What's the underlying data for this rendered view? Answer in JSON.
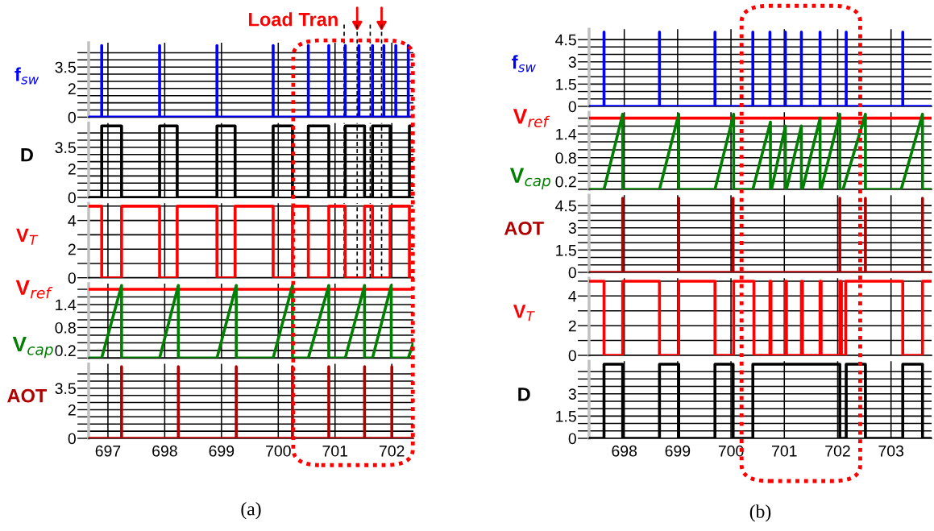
{
  "chart_data": [
    {
      "type": "line",
      "series": [
        {
          "name": "f$_{sw}$",
          "color": "#0000ff",
          "x": [
            696.66,
            696.89,
            696.89,
            696.89,
            697.91,
            697.91,
            697.91,
            698.92,
            698.92,
            698.92,
            699.91,
            699.91,
            699.91,
            700.53,
            700.53,
            700.53,
            700.89,
            700.89,
            700.89,
            701.18,
            701.18,
            701.18,
            701.42,
            701.42,
            701.42,
            701.66,
            701.66,
            701.66,
            701.86,
            701.86,
            701.86,
            702.07,
            702.07,
            702.07,
            702.29,
            702.29,
            702.29,
            702.38
          ],
          "values": [
            0,
            0,
            5,
            0,
            0,
            5,
            0,
            0,
            5,
            0,
            0,
            5,
            0,
            0,
            5,
            0,
            0,
            5,
            0,
            0,
            5,
            0,
            0,
            5,
            0,
            0,
            5,
            0,
            0,
            5,
            0,
            0,
            5,
            0,
            0,
            5,
            0,
            0
          ]
        }
      ],
      "xlim": [
        696.66,
        702.38
      ],
      "xticks": [
        697,
        698,
        699,
        700,
        701,
        702
      ],
      "ylim": [
        0,
        5.2
      ],
      "yticks": [
        0,
        {
          "value": 0.5,
          "label": null
        },
        {
          "value": 1,
          "label": null
        },
        {
          "value": 1.5,
          "label": null
        },
        2,
        {
          "value": 2.5,
          "label": null
        },
        {
          "value": 3,
          "label": null
        },
        3.5,
        {
          "value": 4,
          "label": null
        },
        {
          "value": 4.5,
          "label": null
        }
      ],
      "grid": true,
      "tick_labels": "y",
      "ref_lines": [
        {
          "axis": "x",
          "value": 701.16,
          "color": "#000000",
          "line_style": "dashed"
        },
        {
          "axis": "x",
          "value": 701.39,
          "color": "#000000",
          "line_style": "dashed"
        },
        {
          "axis": "x",
          "value": 701.62,
          "color": "#000000",
          "line_style": "dashed"
        },
        {
          "axis": "x",
          "value": 701.82,
          "color": "#000000",
          "line_style": "dashed"
        }
      ],
      "annotations": [
        "Load Tran"
      ]
    },
    {
      "type": "step",
      "series": [
        {
          "name": "D",
          "color": "#000000",
          "x": [
            696.66,
            696.89,
            697.24,
            697.91,
            698.22,
            698.92,
            699.24,
            699.91,
            700.25,
            700.53,
            700.89,
            701.18,
            701.52,
            701.66,
            701.97,
            702.31,
            702.38
          ],
          "values": [
            0,
            5,
            0,
            5,
            0,
            5,
            0,
            5,
            0,
            5,
            0,
            5,
            0,
            5,
            0,
            5,
            5
          ]
        }
      ],
      "xlim": [
        696.66,
        702.38
      ],
      "xticks": [
        697,
        698,
        699,
        700,
        701,
        702
      ],
      "ylim": [
        0,
        5.2
      ],
      "yticks": [
        0,
        {
          "value": 0.5,
          "label": null
        },
        {
          "value": 1,
          "label": null
        },
        {
          "value": 1.5,
          "label": null
        },
        2,
        {
          "value": 2.5,
          "label": null
        },
        {
          "value": 3,
          "label": null
        },
        3.5,
        {
          "value": 4,
          "label": null
        },
        {
          "value": 4.5,
          "label": null
        }
      ],
      "grid": true,
      "tick_labels": "y",
      "ref_lines": [
        {
          "axis": "x",
          "value": 701.16,
          "color": "#000000",
          "line_style": "dashed"
        },
        {
          "axis": "x",
          "value": 701.39,
          "color": "#000000",
          "line_style": "dashed"
        },
        {
          "axis": "x",
          "value": 701.62,
          "color": "#000000",
          "line_style": "dashed"
        },
        {
          "axis": "x",
          "value": 701.82,
          "color": "#000000",
          "line_style": "dashed"
        }
      ]
    },
    {
      "type": "step",
      "series": [
        {
          "name": "V$_{T}$",
          "color": "#ff0000",
          "x": [
            696.66,
            696.89,
            697.24,
            697.91,
            698.22,
            698.92,
            699.24,
            699.91,
            700.25,
            700.53,
            700.89,
            701.18,
            701.52,
            701.66,
            701.97,
            702.31,
            702.38
          ],
          "values": [
            5,
            0,
            5,
            0,
            5,
            0,
            5,
            0,
            5,
            0,
            5,
            0,
            5,
            0,
            5,
            0,
            0
          ]
        }
      ],
      "xlim": [
        696.66,
        702.38
      ],
      "xticks": [
        697,
        698,
        699,
        700,
        701,
        702
      ],
      "ylim": [
        0,
        5.2
      ],
      "yticks": [
        0,
        {
          "value": 1,
          "label": null
        },
        2,
        {
          "value": 3,
          "label": null
        },
        4,
        {
          "value": 5,
          "label": null
        }
      ],
      "grid": true,
      "tick_labels": "y",
      "ref_lines": [
        {
          "axis": "x",
          "value": 701.16,
          "color": "#000000",
          "line_style": "dashed"
        },
        {
          "axis": "x",
          "value": 701.39,
          "color": "#000000",
          "line_style": "dashed"
        },
        {
          "axis": "x",
          "value": 701.62,
          "color": "#000000",
          "line_style": "dashed"
        },
        {
          "axis": "x",
          "value": 701.82,
          "color": "#000000",
          "line_style": "dashed"
        }
      ]
    },
    {
      "type": "line",
      "series": [
        {
          "name": "V$_{ref}$",
          "color": "#ff0000",
          "x": [
            696.66,
            702.38
          ],
          "values": [
            1.8,
            1.8
          ]
        },
        {
          "name": "V$_{cap}$",
          "color": "#008000",
          "x": [
            696.66,
            696.89,
            697.24,
            697.24,
            697.91,
            698.24,
            698.24,
            698.92,
            699.26,
            699.26,
            699.91,
            700.25,
            700.25,
            700.53,
            700.89,
            700.89,
            701.18,
            701.52,
            701.52,
            701.66,
            701.99,
            701.99,
            702.29,
            702.38
          ],
          "values": [
            0,
            0,
            1.9,
            0,
            0,
            1.9,
            0,
            0,
            1.9,
            0,
            0,
            1.9,
            0,
            0,
            1.9,
            0,
            0,
            1.9,
            0,
            0,
            1.9,
            0,
            0,
            0.4
          ]
        }
      ],
      "xlim": [
        696.66,
        702.38
      ],
      "xticks": [
        697,
        698,
        699,
        700,
        701,
        702
      ],
      "ylim": [
        0,
        1.95
      ],
      "yticks": [
        {
          "value": 0,
          "label": null
        },
        0.2,
        {
          "value": 0.4,
          "label": null
        },
        {
          "value": 0.6,
          "label": null
        },
        0.8,
        {
          "value": 1,
          "label": null
        },
        {
          "value": 1.2,
          "label": null
        },
        1.4,
        {
          "value": 1.6,
          "label": null
        },
        {
          "value": 1.8,
          "label": null
        }
      ],
      "grid": true,
      "tick_labels": "y"
    },
    {
      "type": "line",
      "series": [
        {
          "name": "AOT",
          "color": "#b00000",
          "x": [
            696.66,
            697.24,
            697.24,
            697.24,
            698.24,
            698.24,
            698.24,
            699.26,
            699.26,
            699.26,
            700.25,
            700.25,
            700.25,
            700.89,
            700.89,
            700.89,
            701.52,
            701.52,
            701.52,
            702.0,
            702.0,
            702.0,
            702.38
          ],
          "values": [
            0,
            0,
            5,
            0,
            0,
            5,
            0,
            0,
            5,
            0,
            0,
            5,
            0,
            0,
            5,
            0,
            0,
            5,
            0,
            0,
            5,
            0,
            0
          ]
        }
      ],
      "xlim": [
        696.66,
        702.38
      ],
      "xticks": [
        697,
        698,
        699,
        700,
        701,
        702
      ],
      "ylim": [
        0,
        5.2
      ],
      "yticks": [
        0,
        {
          "value": 0.5,
          "label": null
        },
        {
          "value": 1,
          "label": null
        },
        {
          "value": 1.5,
          "label": null
        },
        2,
        {
          "value": 2.5,
          "label": null
        },
        {
          "value": 3,
          "label": null
        },
        3.5,
        {
          "value": 4,
          "label": null
        },
        {
          "value": 4.5,
          "label": null
        }
      ],
      "grid": true,
      "annotations": [
        "(a)"
      ]
    },
    {
      "type": "line",
      "series": [
        {
          "name": "f$_{sw}$",
          "color": "#0000ff",
          "x": [
            697.34,
            697.62,
            697.62,
            697.62,
            698.66,
            698.66,
            698.66,
            699.7,
            699.7,
            699.7,
            700.41,
            700.41,
            700.41,
            700.73,
            700.73,
            700.73,
            701.02,
            701.02,
            701.02,
            701.32,
            701.32,
            701.32,
            701.67,
            701.67,
            701.67,
            702.16,
            702.16,
            702.16,
            703.22,
            703.22,
            703.22,
            703.76
          ],
          "values": [
            0,
            0,
            5,
            0,
            0,
            5,
            0,
            0,
            5,
            0,
            0,
            5,
            0,
            0,
            5,
            0,
            0,
            5,
            0,
            0,
            5,
            0,
            0,
            5,
            0,
            0,
            5,
            0,
            0,
            5,
            0,
            0
          ]
        }
      ],
      "xlim": [
        697.34,
        703.76
      ],
      "xticks": [
        698,
        699,
        700,
        701,
        702,
        703
      ],
      "ylim": [
        0,
        5.2
      ],
      "yticks": [
        0,
        {
          "value": 0.5,
          "label": null
        },
        {
          "value": 1,
          "label": null
        },
        1.5,
        {
          "value": 2,
          "label": null
        },
        {
          "value": 2.5,
          "label": null
        },
        3,
        {
          "value": 3.5,
          "label": null
        },
        {
          "value": 4,
          "label": null
        },
        4.5
      ],
      "grid": true,
      "tick_labels": "y"
    },
    {
      "type": "line",
      "series": [
        {
          "name": "V$_{ref}$",
          "color": "#ff0000",
          "x": [
            697.34,
            703.76
          ],
          "values": [
            1.8,
            1.8
          ]
        },
        {
          "name": "V$_{cap}$",
          "color": "#008000",
          "x": [
            697.34,
            697.62,
            697.97,
            697.97,
            698.66,
            699.02,
            699.02,
            699.7,
            700.05,
            700.05,
            700.41,
            700.74,
            700.74,
            700.76,
            701.02,
            701.02,
            701.04,
            701.32,
            701.32,
            701.34,
            701.67,
            701.67,
            701.69,
            702.04,
            702.04,
            702.1,
            702.52,
            702.52,
            703.19,
            703.59,
            703.59,
            703.76
          ],
          "values": [
            0,
            0,
            1.9,
            0,
            0,
            1.9,
            0,
            0,
            1.9,
            0,
            0,
            1.7,
            0,
            0,
            1.6,
            0,
            0,
            1.6,
            0,
            0,
            1.8,
            0,
            0,
            1.9,
            0,
            0,
            1.9,
            0,
            0,
            1.9,
            0,
            0
          ]
        }
      ],
      "xlim": [
        697.34,
        703.76
      ],
      "xticks": [
        698,
        699,
        700,
        701,
        702,
        703
      ],
      "ylim": [
        0,
        1.95
      ],
      "yticks": [
        {
          "value": 0,
          "label": null
        },
        0.2,
        {
          "value": 0.4,
          "label": null
        },
        {
          "value": 0.6,
          "label": null
        },
        0.8,
        {
          "value": 1,
          "label": null
        },
        {
          "value": 1.2,
          "label": null
        },
        1.4,
        {
          "value": 1.6,
          "label": null
        },
        {
          "value": 1.8,
          "label": null
        }
      ],
      "grid": true,
      "tick_labels": "y"
    },
    {
      "type": "line",
      "series": [
        {
          "name": "AOT",
          "color": "#b00000",
          "x": [
            697.34,
            697.97,
            697.97,
            697.97,
            699.02,
            699.02,
            699.02,
            700.04,
            700.04,
            700.04,
            702.04,
            702.04,
            702.04,
            702.52,
            702.52,
            702.52,
            703.59,
            703.59,
            703.59,
            703.76
          ],
          "values": [
            0,
            0,
            5,
            0,
            0,
            5,
            0,
            0,
            5,
            0,
            0,
            5,
            0,
            0,
            5,
            0,
            0,
            5,
            0,
            0
          ]
        }
      ],
      "xlim": [
        697.34,
        703.76
      ],
      "xticks": [
        698,
        699,
        700,
        701,
        702,
        703
      ],
      "ylim": [
        0,
        5.2
      ],
      "yticks": [
        0,
        {
          "value": 0.5,
          "label": null
        },
        {
          "value": 1,
          "label": null
        },
        1.5,
        {
          "value": 2,
          "label": null
        },
        {
          "value": 2.5,
          "label": null
        },
        3,
        {
          "value": 3.5,
          "label": null
        },
        {
          "value": 4,
          "label": null
        },
        4.5
      ],
      "grid": true,
      "tick_labels": "y"
    },
    {
      "type": "step",
      "series": [
        {
          "name": "V$_{T}$",
          "color": "#ff0000",
          "x": [
            697.34,
            697.62,
            697.97,
            698.66,
            699.02,
            699.7,
            700.05,
            700.43,
            700.73,
            700.75,
            701.02,
            701.04,
            701.32,
            701.34,
            701.67,
            701.69,
            702.04,
            702.07,
            702.15,
            703.22,
            703.59,
            703.76
          ],
          "values": [
            5,
            0,
            5,
            0,
            5,
            0,
            5,
            0,
            5,
            0,
            5,
            0,
            5,
            0,
            5,
            0,
            5,
            0,
            5,
            0,
            5,
            5
          ]
        }
      ],
      "xlim": [
        697.34,
        703.76
      ],
      "xticks": [
        698,
        699,
        700,
        701,
        702,
        703
      ],
      "ylim": [
        0,
        5.2
      ],
      "yticks": [
        0,
        {
          "value": 1,
          "label": null
        },
        2,
        {
          "value": 3,
          "label": null
        },
        4,
        {
          "value": 5,
          "label": null
        }
      ],
      "grid": true,
      "tick_labels": "y"
    },
    {
      "type": "step",
      "series": [
        {
          "name": "D",
          "color": "#000000",
          "x": [
            697.34,
            697.62,
            697.97,
            698.66,
            699.02,
            699.7,
            700.04,
            700.41,
            702.04,
            702.16,
            702.52,
            703.22,
            703.59,
            703.76
          ],
          "values": [
            0,
            5,
            0,
            5,
            0,
            5,
            0,
            5,
            0,
            5,
            0,
            5,
            0,
            0
          ]
        }
      ],
      "xlim": [
        697.34,
        703.76
      ],
      "xticks": [
        698,
        699,
        700,
        701,
        702,
        703
      ],
      "ylim": [
        0,
        5.2
      ],
      "yticks": [
        0,
        {
          "value": 0.5,
          "label": null
        },
        {
          "value": 1,
          "label": null
        },
        1.5,
        {
          "value": 2,
          "label": null
        },
        {
          "value": 2.5,
          "label": null
        },
        3,
        {
          "value": 3.5,
          "label": null
        },
        {
          "value": 4,
          "label": null
        },
        {
          "value": 4.5,
          "label": null
        }
      ],
      "grid": true,
      "annotations": [
        "(b)"
      ]
    }
  ]
}
